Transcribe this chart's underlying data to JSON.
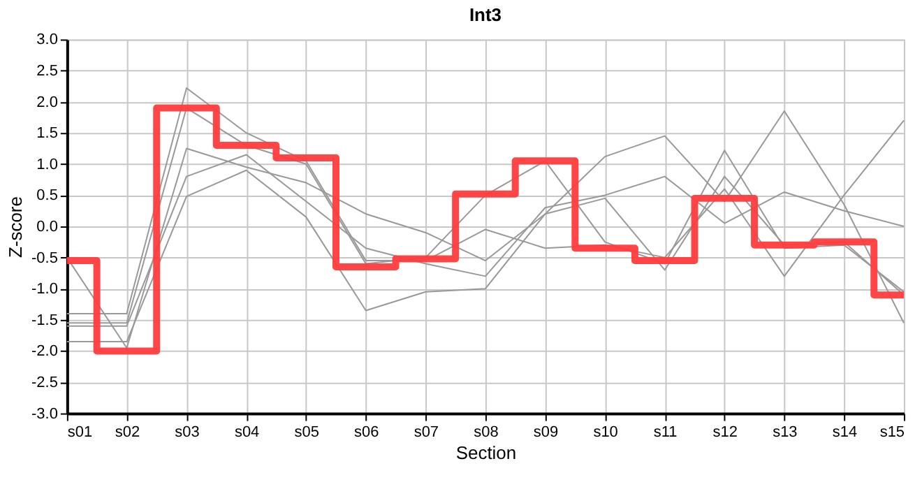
{
  "chart_data": {
    "type": "line",
    "title": "Int3",
    "xlabel": "Section",
    "ylabel": "Z-score",
    "categories": [
      "s01",
      "s02",
      "s03",
      "s04",
      "s05",
      "s06",
      "s07",
      "s08",
      "s09",
      "s10",
      "s11",
      "s12",
      "s13",
      "s14",
      "s15"
    ],
    "series": [
      {
        "color": "#999999",
        "values": [
          -1.4,
          -1.4,
          2.22,
          1.5,
          1.05,
          -0.55,
          -0.55,
          -0.05,
          -0.35,
          -0.3,
          -0.5,
          0.6,
          -0.8,
          0.5,
          1.7
        ]
      },
      {
        "color": "#999999",
        "values": [
          -1.55,
          -1.55,
          1.9,
          1.3,
          1.0,
          -0.6,
          -0.5,
          0.5,
          1.05,
          -0.25,
          -0.6,
          1.22,
          -0.35,
          -0.3,
          -1.05
        ]
      },
      {
        "color": "#999999",
        "values": [
          -0.5,
          -1.95,
          1.25,
          0.95,
          0.7,
          0.2,
          -0.1,
          -0.55,
          0.2,
          1.12,
          1.45,
          0.4,
          1.85,
          0.35,
          -1.55
        ]
      },
      {
        "color": "#999999",
        "values": [
          -1.6,
          -1.6,
          0.8,
          1.15,
          0.4,
          -0.35,
          -0.6,
          -0.8,
          0.3,
          0.5,
          0.8,
          0.05,
          0.55,
          0.25,
          0.0
        ]
      },
      {
        "color": "#999999",
        "values": [
          -1.85,
          -1.85,
          0.48,
          0.9,
          0.15,
          -1.35,
          -1.05,
          -1.0,
          0.2,
          0.45,
          -0.7,
          0.8,
          -0.3,
          -0.25,
          -1.1
        ]
      },
      {
        "type": "step",
        "color": "#ff3b3b",
        "values": [
          -0.55,
          -2.0,
          1.9,
          1.3,
          1.1,
          -0.65,
          -0.52,
          0.52,
          1.05,
          -0.35,
          -0.55,
          0.45,
          -0.3,
          -0.25,
          -1.1
        ]
      }
    ],
    "ylim": [
      -3.0,
      3.0
    ],
    "yticks": [
      {
        "value": -3,
        "label": "-3.0"
      },
      {
        "value": -2.5,
        "label": "-2.5"
      },
      {
        "value": -2,
        "label": "-2.0"
      },
      {
        "value": -1.5,
        "label": "-1.5"
      },
      {
        "value": -1,
        "label": "-1.0"
      },
      {
        "value": -0.5,
        "label": "-0.5"
      },
      {
        "value": 0,
        "label": "0.0"
      },
      {
        "value": 0.5,
        "label": "0.5"
      },
      {
        "value": 1,
        "label": "1.0"
      },
      {
        "value": 1.5,
        "label": "1.5"
      },
      {
        "value": 2,
        "label": "2.0"
      },
      {
        "value": 2.5,
        "label": "2.5"
      },
      {
        "value": 3,
        "label": "3.0"
      }
    ],
    "grid": true
  }
}
